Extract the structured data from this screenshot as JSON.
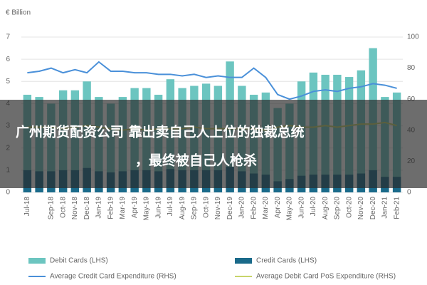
{
  "chart_data": {
    "type": "bar",
    "y_label": "€ Billion",
    "categories": [
      "Jul-18",
      null,
      "Sep-18",
      "Oct-18",
      "Nov-18",
      "Dec-18",
      "Jan-19",
      "Feb-19",
      "Mar-19",
      "Apr-19",
      "May-19",
      "Jun-19",
      "Jul-19",
      "Aug-19",
      "Sep-19",
      "Oct-19",
      "Nov-19",
      "Dec-19",
      "Jan-20",
      "Feb-20",
      "Mar-20",
      "Apr-20",
      "May-20",
      "Jun-20",
      "Jul-20",
      "Aug-20",
      "Sep-20",
      "Oct-20",
      "Nov-20",
      "Dec-20",
      "Jan-21",
      "Feb-21"
    ],
    "series": [
      {
        "name": "Debit Cards (LHS)",
        "color": "#6cc5c0",
        "values": [
          4.4,
          4.3,
          4.0,
          4.6,
          4.6,
          5.0,
          4.3,
          4.0,
          4.3,
          4.7,
          4.7,
          4.4,
          5.1,
          4.7,
          4.8,
          4.9,
          4.8,
          5.9,
          4.8,
          4.4,
          4.5,
          3.8,
          4.0,
          5.0,
          5.4,
          5.3,
          5.3,
          5.2,
          5.5,
          6.5,
          4.3,
          4.5
        ]
      },
      {
        "name": "Credit Cards (LHS)",
        "color": "#1a6a8a",
        "values": [
          1.0,
          0.95,
          0.95,
          1.0,
          1.0,
          1.1,
          0.95,
          0.9,
          0.95,
          1.0,
          1.0,
          0.95,
          1.05,
          1.0,
          1.0,
          1.0,
          1.0,
          1.15,
          0.95,
          0.85,
          0.8,
          0.5,
          0.6,
          0.75,
          0.8,
          0.8,
          0.8,
          0.8,
          0.85,
          1.0,
          0.7,
          0.7
        ]
      },
      {
        "name": "Average Credit Card Expenditure (RHS)",
        "color": "#4a90d9",
        "axis": "y2",
        "values": [
          77,
          78,
          80,
          77,
          79,
          77,
          84,
          78,
          78,
          77,
          77,
          76,
          76,
          75,
          76,
          74,
          75,
          74,
          74,
          80,
          74,
          63,
          60,
          62,
          65,
          66,
          65,
          67,
          68,
          70,
          69,
          67
        ]
      },
      {
        "name": "Average Debit Card PoS Expenditure (RHS)",
        "color": "#c8d46a",
        "axis": "y2",
        "values": [
          42,
          42,
          42,
          41,
          42,
          43,
          42,
          41,
          40,
          41,
          40,
          41,
          41,
          41,
          42,
          41,
          41,
          41,
          41,
          41,
          40,
          42,
          43,
          42,
          42,
          43,
          42,
          43,
          44,
          44,
          45,
          43
        ]
      }
    ],
    "ylim": [
      0,
      7
    ],
    "yticks": [
      0,
      1,
      2,
      3,
      4,
      5,
      6,
      7
    ],
    "y2lim": [
      0,
      100
    ],
    "y2ticks": [
      0,
      20,
      40,
      60,
      80,
      100
    ],
    "grid": true
  },
  "overlay": {
    "lines": [
      "广州期货配资公司 靠出卖自己人上位的独裁总统",
      "，最终被自己人枪杀"
    ]
  }
}
